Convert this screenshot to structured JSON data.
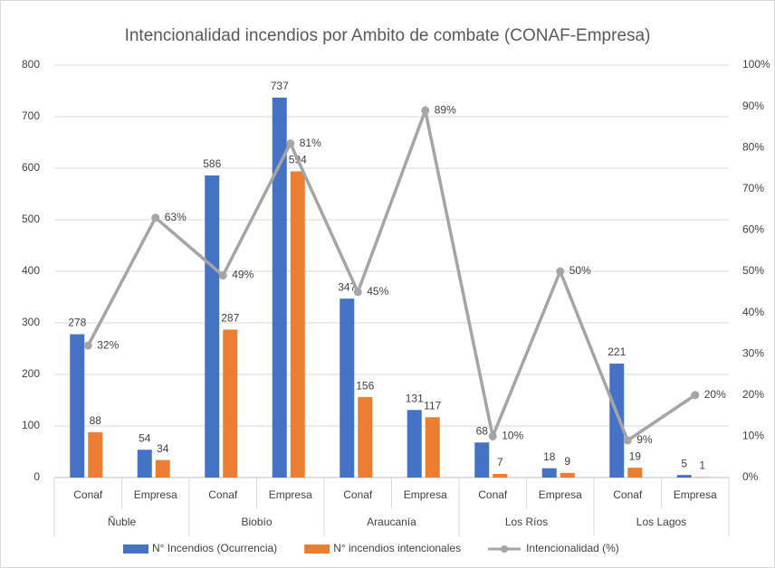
{
  "chart_data": {
    "type": "bar",
    "title": "Intencionalidad incendios por Ambito de combate (CONAF-Empresa)",
    "categories": [
      "Conaf",
      "Empresa",
      "Conaf",
      "Empresa",
      "Conaf",
      "Empresa",
      "Conaf",
      "Empresa",
      "Conaf",
      "Empresa"
    ],
    "groups": [
      "Ñuble",
      "Biobío",
      "Araucanía",
      "Los Ríos",
      "Los Lagos"
    ],
    "series": [
      {
        "name": "N° Incendios (Ocurrencia)",
        "color": "#4472c4",
        "values": [
          278,
          54,
          586,
          737,
          347,
          131,
          68,
          18,
          221,
          5
        ]
      },
      {
        "name": "N° incendios intencionales",
        "color": "#ed7d31",
        "values": [
          88,
          34,
          287,
          594,
          156,
          117,
          7,
          9,
          19,
          1
        ]
      },
      {
        "name": "Intencionalidad (%)",
        "color": "#a5a5a5",
        "type": "line",
        "axis": "y2",
        "values": [
          32,
          63,
          49,
          81,
          45,
          89,
          10,
          50,
          9,
          20
        ],
        "value_labels": [
          "32%",
          "63%",
          "49%",
          "81%",
          "45%",
          "89%",
          "10%",
          "50%",
          "9%",
          "20%"
        ]
      }
    ],
    "ylim": [
      0,
      800
    ],
    "yticks": [
      0,
      100,
      200,
      300,
      400,
      500,
      600,
      700,
      800
    ],
    "y2lim": [
      0,
      100
    ],
    "y2ticks": [
      {
        "value": 0,
        "label": "0%"
      },
      {
        "value": 10,
        "label": "10%"
      },
      {
        "value": 20,
        "label": "20%"
      },
      {
        "value": 30,
        "label": "30%"
      },
      {
        "value": 40,
        "label": "40%"
      },
      {
        "value": 50,
        "label": "50%"
      },
      {
        "value": 60,
        "label": "60%"
      },
      {
        "value": 70,
        "label": "70%"
      },
      {
        "value": 80,
        "label": "80%"
      },
      {
        "value": 90,
        "label": "90%"
      },
      {
        "value": 100,
        "label": "100%"
      }
    ],
    "grid": true,
    "legend": "bottom"
  }
}
